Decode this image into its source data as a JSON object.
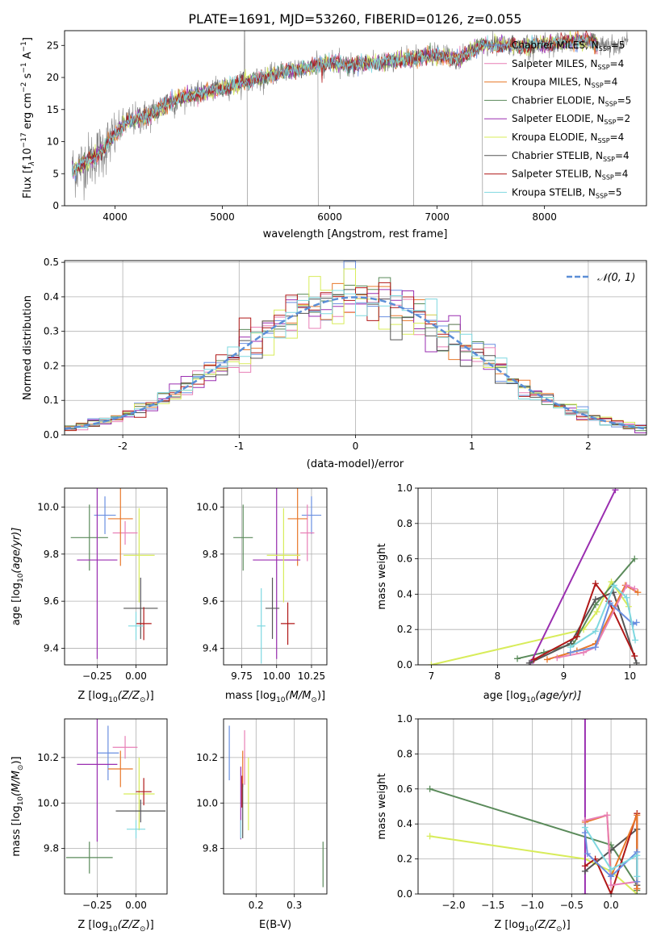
{
  "figure_title": "PLATE=1691, MJD=53260, FIBERID=0126, z=0.055",
  "colors": {
    "chabrier_miles": "#6a8fe0",
    "salpeter_miles": "#e87fb6",
    "kroupa_miles": "#e8782a",
    "chabrier_elodie": "#5a8a5a",
    "salpeter_elodie": "#9a2eb0",
    "kroupa_elodie": "#d8ec5a",
    "chabrier_stelib": "#555555",
    "salpeter_stelib": "#b01818",
    "kroupa_stelib": "#7fd8e0",
    "data": "#808080",
    "normal": "#5b8ed6",
    "grid": "#b0b0b0"
  },
  "chart_data": [
    {
      "id": "spectrum",
      "type": "line",
      "xlabel": "wavelength [Angstrom, rest frame]",
      "ylabel_parts": [
        "Flux [f",
        "λ",
        "10",
        "−17",
        " erg cm",
        "−2",
        " s",
        "−1",
        " A",
        "−1",
        "]"
      ],
      "xlim": [
        3530,
        8950
      ],
      "ylim": [
        0,
        27.3
      ],
      "xticks": [
        4000,
        5000,
        6000,
        7000,
        8000
      ],
      "yticks": [
        0,
        5,
        10,
        15,
        20,
        25
      ],
      "grid": false,
      "legend_position": "top-right",
      "continuum": {
        "x": [
          3600,
          3700,
          3800,
          3900,
          4000,
          4100,
          4200,
          4300,
          4400,
          4500,
          4600,
          4800,
          5000,
          5200,
          5400,
          5600,
          5800,
          6000,
          6200,
          6400,
          6600,
          6800,
          7000,
          7200,
          7400,
          7600,
          7800,
          8000,
          8200,
          8400,
          8600,
          8800
        ],
        "y": [
          5.5,
          6.5,
          7.5,
          9.0,
          11.0,
          13.0,
          13.5,
          14.0,
          15.0,
          16.0,
          16.8,
          17.5,
          18.3,
          19.3,
          20.0,
          21.0,
          21.5,
          22.3,
          22.0,
          22.3,
          22.5,
          23.0,
          23.5,
          22.8,
          25.0,
          25.0,
          24.8,
          25.2,
          25.5,
          25.7,
          25.0,
          25.3
        ]
      },
      "dropouts": [
        5230,
        5890,
        6780,
        7420
      ],
      "legend": [
        {
          "key": "chabrier_miles",
          "pre": "Chabrier MILES, N",
          "sub": "SSP",
          "post": "=5"
        },
        {
          "key": "salpeter_miles",
          "pre": "Salpeter MILES, N",
          "sub": "SSP",
          "post": "=4"
        },
        {
          "key": "kroupa_miles",
          "pre": "Kroupa MILES, N",
          "sub": "SSP",
          "post": "=4"
        },
        {
          "key": "chabrier_elodie",
          "pre": "Chabrier ELODIE, N",
          "sub": "SSP",
          "post": "=5"
        },
        {
          "key": "salpeter_elodie",
          "pre": "Salpeter ELODIE, N",
          "sub": "SSP",
          "post": "=2"
        },
        {
          "key": "kroupa_elodie",
          "pre": "Kroupa ELODIE, N",
          "sub": "SSP",
          "post": "=4"
        },
        {
          "key": "chabrier_stelib",
          "pre": "Chabrier STELIB, N",
          "sub": "SSP",
          "post": "=4"
        },
        {
          "key": "salpeter_stelib",
          "pre": "Salpeter STELIB, N",
          "sub": "SSP",
          "post": "=4"
        },
        {
          "key": "kroupa_stelib",
          "pre": "Kroupa STELIB, N",
          "sub": "SSP",
          "post": "=5"
        }
      ]
    },
    {
      "id": "residuals",
      "type": "histogram",
      "xlabel": "(data-model)/error",
      "ylabel": "Normed distribution",
      "xlim": [
        -2.5,
        2.5
      ],
      "ylim": [
        0,
        0.505
      ],
      "xticks": [
        -2,
        -1,
        0,
        1,
        2
      ],
      "yticks": [
        0.0,
        0.1,
        0.2,
        0.3,
        0.4,
        0.5
      ],
      "grid": true,
      "legend_position": "top-right",
      "legend_label": "𝒩(0, 1)",
      "bin_width": 0.1
    },
    {
      "id": "age_vs_z",
      "type": "errorbar",
      "xlabel_pre": "Z [log",
      "xlabel_sub": "10",
      "xlabel_post": "(Z/Z",
      "xlabel_end": ")]",
      "ylabel_pre": "age  [log",
      "ylabel_sub": "10",
      "ylabel_post": "(age/yr)]",
      "xlim": [
        -0.46,
        0.2
      ],
      "ylim": [
        9.33,
        10.08
      ],
      "xticks": [
        -0.25,
        0.0
      ],
      "xtick_labels": [
        "−0.25",
        "0.00"
      ],
      "yticks": [
        9.4,
        9.6,
        9.8,
        10.0
      ],
      "points": [
        {
          "key": "chabrier_miles",
          "x": -0.2,
          "y": 9.965,
          "xerr": 0.07,
          "yerr": 0.08
        },
        {
          "key": "salpeter_miles",
          "x": -0.07,
          "y": 9.89,
          "xerr": 0.08,
          "yerr": 0.05
        },
        {
          "key": "kroupa_miles",
          "x": -0.1,
          "y": 9.95,
          "xerr": 0.08,
          "yerr": 0.2
        },
        {
          "key": "chabrier_elodie",
          "x": -0.3,
          "y": 9.87,
          "xerr": 0.12,
          "yerr": 0.14
        },
        {
          "key": "salpeter_elodie",
          "x": -0.25,
          "y": 9.775,
          "xerr": 0.13,
          "yerr": 0.42
        },
        {
          "key": "kroupa_elodie",
          "x": 0.02,
          "y": 9.795,
          "xerr": 0.1,
          "yerr": 0.2
        },
        {
          "key": "chabrier_stelib",
          "x": 0.03,
          "y": 9.57,
          "xerr": 0.11,
          "yerr": 0.13
        },
        {
          "key": "salpeter_stelib",
          "x": 0.05,
          "y": 9.505,
          "xerr": 0.05,
          "yerr": 0.07
        },
        {
          "key": "kroupa_stelib",
          "x": 0.0,
          "y": 9.495,
          "xerr": 0.05,
          "yerr": 0.06
        }
      ]
    },
    {
      "id": "age_vs_mass",
      "type": "errorbar",
      "xlabel_pre": "mass [log",
      "xlabel_sub": "10",
      "xlabel_post": "(M/M",
      "xlabel_end": ")]",
      "xlim": [
        9.62,
        10.36
      ],
      "ylim": [
        9.33,
        10.08
      ],
      "xticks": [
        9.75,
        10.0,
        10.25
      ],
      "xtick_labels": [
        "9.75",
        "10.00",
        "10.25"
      ],
      "yticks": [
        9.4,
        9.6,
        9.8,
        10.0
      ],
      "points": [
        {
          "key": "chabrier_miles",
          "x": 10.25,
          "y": 9.965,
          "xerr": 0.07,
          "yerr": 0.08
        },
        {
          "key": "salpeter_miles",
          "x": 10.22,
          "y": 9.89,
          "xerr": 0.05,
          "yerr": 0.12
        },
        {
          "key": "kroupa_miles",
          "x": 10.15,
          "y": 9.95,
          "xerr": 0.07,
          "yerr": 0.2
        },
        {
          "key": "chabrier_elodie",
          "x": 9.76,
          "y": 9.87,
          "xerr": 0.07,
          "yerr": 0.14
        },
        {
          "key": "salpeter_elodie",
          "x": 10.0,
          "y": 9.775,
          "xerr": 0.17,
          "yerr": 0.42
        },
        {
          "key": "kroupa_elodie",
          "x": 10.05,
          "y": 9.795,
          "xerr": 0.12,
          "yerr": 0.2
        },
        {
          "key": "chabrier_stelib",
          "x": 9.97,
          "y": 9.57,
          "xerr": 0.05,
          "yerr": 0.13
        },
        {
          "key": "salpeter_stelib",
          "x": 10.08,
          "y": 9.505,
          "xerr": 0.05,
          "yerr": 0.09
        },
        {
          "key": "kroupa_stelib",
          "x": 9.89,
          "y": 9.495,
          "xerr": 0.03,
          "yerr": 0.16
        }
      ]
    },
    {
      "id": "weight_vs_age",
      "type": "line",
      "xlabel_pre": "age  [log",
      "xlabel_sub": "10",
      "xlabel_post": "(age/yr)]",
      "ylabel": "mass weight",
      "xlim": [
        6.8,
        10.25
      ],
      "ylim": [
        0,
        1
      ],
      "xticks": [
        7,
        8,
        9,
        10
      ],
      "yticks": [
        0.0,
        0.2,
        0.4,
        0.6,
        0.8,
        1.0
      ],
      "grid": true,
      "series": [
        {
          "key": "kroupa_elodie",
          "x": [
            7.0,
            9.3,
            9.5,
            9.72,
            9.98
          ],
          "y": [
            0.0,
            0.2,
            0.3,
            0.47,
            0.33
          ]
        },
        {
          "key": "chabrier_elodie",
          "x": [
            8.3,
            8.7,
            9.15,
            9.48,
            10.07
          ],
          "y": [
            0.035,
            0.07,
            0.12,
            0.34,
            0.6
          ]
        },
        {
          "key": "salpeter_elodie",
          "x": [
            8.5,
            9.78
          ],
          "y": [
            0.01,
            0.99
          ]
        },
        {
          "key": "chabrier_stelib",
          "x": [
            8.48,
            9.1,
            9.48,
            9.75,
            10.1
          ],
          "y": [
            0.01,
            0.12,
            0.37,
            0.41,
            0.01
          ]
        },
        {
          "key": "salpeter_stelib",
          "x": [
            8.55,
            9.2,
            9.48,
            9.68,
            10.07
          ],
          "y": [
            0.03,
            0.16,
            0.46,
            0.36,
            0.05
          ]
        },
        {
          "key": "kroupa_miles",
          "x": [
            8.75,
            9.2,
            9.48,
            9.93,
            10.12
          ],
          "y": [
            0.03,
            0.08,
            0.12,
            0.45,
            0.41
          ]
        },
        {
          "key": "salpeter_miles",
          "x": [
            8.9,
            9.3,
            9.48,
            9.95,
            10.07
          ],
          "y": [
            0.04,
            0.07,
            0.1,
            0.45,
            0.43
          ]
        },
        {
          "key": "chabrier_miles",
          "x": [
            9.1,
            9.48,
            9.7,
            10.05,
            10.1
          ],
          "y": [
            0.07,
            0.1,
            0.35,
            0.23,
            0.24
          ]
        },
        {
          "key": "kroupa_stelib",
          "x": [
            9.1,
            9.48,
            9.76,
            9.95,
            10.08
          ],
          "y": [
            0.1,
            0.19,
            0.45,
            0.38,
            0.14
          ]
        }
      ]
    },
    {
      "id": "mass_vs_z",
      "type": "errorbar",
      "xlabel_pre": "Z [log",
      "xlabel_sub": "10",
      "xlabel_post": "(Z/Z",
      "xlabel_end": ")]",
      "ylabel_pre": "mass [log",
      "ylabel_sub": "10",
      "ylabel_post": "(M/M",
      "ylabel_end": ")]",
      "xlim": [
        -0.46,
        0.2
      ],
      "ylim": [
        9.6,
        10.37
      ],
      "xticks": [
        -0.25,
        0.0
      ],
      "xtick_labels": [
        "−0.25",
        "0.00"
      ],
      "yticks": [
        9.8,
        10.0,
        10.2
      ],
      "points": [
        {
          "key": "chabrier_miles",
          "x": -0.18,
          "y": 10.22,
          "xerr": 0.07,
          "yerr": 0.12
        },
        {
          "key": "salpeter_miles",
          "x": -0.07,
          "y": 10.245,
          "xerr": 0.08,
          "yerr": 0.05
        },
        {
          "key": "kroupa_miles",
          "x": -0.1,
          "y": 10.15,
          "xerr": 0.08,
          "yerr": 0.08
        },
        {
          "key": "chabrier_elodie",
          "x": -0.3,
          "y": 9.76,
          "xerr": 0.15,
          "yerr": 0.07
        },
        {
          "key": "salpeter_elodie",
          "x": -0.25,
          "y": 10.17,
          "xerr": 0.13,
          "yerr": 0.34
        },
        {
          "key": "kroupa_elodie",
          "x": 0.02,
          "y": 10.04,
          "xerr": 0.1,
          "yerr": 0.16
        },
        {
          "key": "chabrier_stelib",
          "x": 0.03,
          "y": 9.965,
          "xerr": 0.16,
          "yerr": 0.05
        },
        {
          "key": "salpeter_stelib",
          "x": 0.05,
          "y": 10.05,
          "xerr": 0.05,
          "yerr": 0.06
        },
        {
          "key": "kroupa_stelib",
          "x": 0.0,
          "y": 9.885,
          "xerr": 0.06,
          "yerr": 0.04
        }
      ]
    },
    {
      "id": "mass_vs_ebv",
      "type": "errorbar",
      "xlabel": "E(B-V)",
      "xlim": [
        0.115,
        0.385
      ],
      "ylim": [
        9.6,
        10.37
      ],
      "xticks": [
        0.2,
        0.3
      ],
      "xtick_labels": [
        "0.2",
        "0.3"
      ],
      "yticks": [
        9.8,
        10.0,
        10.2
      ],
      "points": [
        {
          "key": "chabrier_miles",
          "x": 0.13,
          "y": 10.22,
          "xerr": 0,
          "yerr": 0.12
        },
        {
          "key": "salpeter_miles",
          "x": 0.17,
          "y": 10.2,
          "xerr": 0,
          "yerr": 0.12
        },
        {
          "key": "kroupa_miles",
          "x": 0.165,
          "y": 10.15,
          "xerr": 0,
          "yerr": 0.08
        },
        {
          "key": "chabrier_elodie",
          "x": 0.375,
          "y": 9.73,
          "xerr": 0,
          "yerr": 0.1
        },
        {
          "key": "salpeter_elodie",
          "x": 0.16,
          "y": 10.0,
          "xerr": 0,
          "yerr": 0.16
        },
        {
          "key": "kroupa_elodie",
          "x": 0.18,
          "y": 10.04,
          "xerr": 0,
          "yerr": 0.16
        },
        {
          "key": "chabrier_stelib",
          "x": 0.165,
          "y": 9.965,
          "xerr": 0,
          "yerr": 0.12
        },
        {
          "key": "salpeter_stelib",
          "x": 0.163,
          "y": 10.05,
          "xerr": 0,
          "yerr": 0.07
        },
        {
          "key": "kroupa_stelib",
          "x": 0.16,
          "y": 9.885,
          "xerr": 0,
          "yerr": 0.04
        }
      ]
    },
    {
      "id": "weight_vs_z",
      "type": "line",
      "xlabel_pre": "Z [log",
      "xlabel_sub": "10",
      "xlabel_post": "(Z/Z",
      "xlabel_end": ")]",
      "ylabel": "mass weight",
      "xlim": [
        -2.45,
        0.45
      ],
      "ylim": [
        0,
        1
      ],
      "xticks": [
        -2.0,
        -1.5,
        -1.0,
        -0.5,
        0.0
      ],
      "xtick_labels": [
        "−2.0",
        "−1.5",
        "−1.0",
        "−0.5",
        "0.0"
      ],
      "yticks": [
        0.0,
        0.2,
        0.4,
        0.6,
        0.8,
        1.0
      ],
      "grid": true,
      "series": [
        {
          "key": "kroupa_elodie",
          "x": [
            -2.3,
            -0.33,
            0.0,
            0.33
          ],
          "y": [
            0.33,
            0.2,
            0.13,
            0.0
          ]
        },
        {
          "key": "chabrier_elodie",
          "x": [
            -2.3,
            0.0,
            0.33,
            0.33
          ],
          "y": [
            0.6,
            0.28,
            0.05,
            0.02
          ]
        },
        {
          "key": "salpeter_elodie",
          "x": [
            -0.33,
            -0.33
          ],
          "y": [
            1.0,
            0.0
          ]
        },
        {
          "key": "chabrier_stelib",
          "x": [
            -0.33,
            0.0,
            0.33,
            0.33
          ],
          "y": [
            0.13,
            0.25,
            0.37,
            0.05
          ]
        },
        {
          "key": "salpeter_stelib",
          "x": [
            -0.33,
            -0.2,
            0.0,
            0.33,
            0.33
          ],
          "y": [
            0.16,
            0.2,
            0.0,
            0.46,
            0.03
          ]
        },
        {
          "key": "kroupa_miles",
          "x": [
            -0.33,
            -0.05,
            0.0,
            0.33,
            0.33
          ],
          "y": [
            0.41,
            0.45,
            0.1,
            0.45,
            0.03
          ]
        },
        {
          "key": "salpeter_miles",
          "x": [
            -0.33,
            -0.05,
            0.0,
            0.33
          ],
          "y": [
            0.42,
            0.45,
            0.05,
            0.07
          ]
        },
        {
          "key": "chabrier_miles",
          "x": [
            -0.33,
            -0.3,
            0.0,
            0.33,
            0.33
          ],
          "y": [
            0.35,
            0.23,
            0.1,
            0.24,
            0.07
          ]
        },
        {
          "key": "kroupa_stelib",
          "x": [
            -0.33,
            0.0,
            0.33,
            0.33
          ],
          "y": [
            0.38,
            0.14,
            0.22,
            0.1
          ]
        }
      ]
    }
  ]
}
